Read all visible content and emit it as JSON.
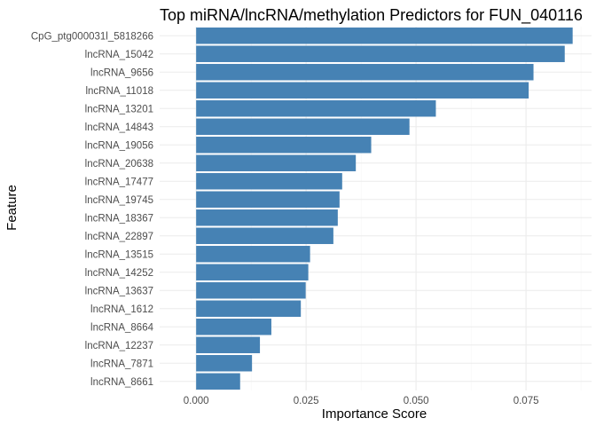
{
  "chart_data": {
    "type": "bar",
    "orientation": "horizontal",
    "title": "Top miRNA/lncRNA/methylation Predictors for FUN_040116",
    "xlabel": "Importance Score",
    "ylabel": "Feature",
    "xlim": [
      -0.0083,
      0.0899
    ],
    "x_ticks": [
      "0.000",
      "0.025",
      "0.050",
      "0.075"
    ],
    "x_tick_values": [
      0,
      0.025,
      0.05,
      0.075
    ],
    "bar_color": "#4682b4",
    "grid": true,
    "categories": [
      "CpG_ptg000031l_5818266",
      "lncRNA_15042",
      "lncRNA_9656",
      "lncRNA_11018",
      "lncRNA_13201",
      "lncRNA_14843",
      "lncRNA_19056",
      "lncRNA_20638",
      "lncRNA_17477",
      "lncRNA_19745",
      "lncRNA_18367",
      "lncRNA_22897",
      "lncRNA_13515",
      "lncRNA_14252",
      "lncRNA_13637",
      "lncRNA_1612",
      "lncRNA_8664",
      "lncRNA_12237",
      "lncRNA_7871",
      "lncRNA_8661"
    ],
    "values": [
      0.0856,
      0.0838,
      0.0767,
      0.0756,
      0.0545,
      0.0485,
      0.0398,
      0.0363,
      0.0332,
      0.0326,
      0.0322,
      0.0312,
      0.0259,
      0.0255,
      0.0249,
      0.0238,
      0.0171,
      0.0145,
      0.0127,
      0.01
    ]
  }
}
